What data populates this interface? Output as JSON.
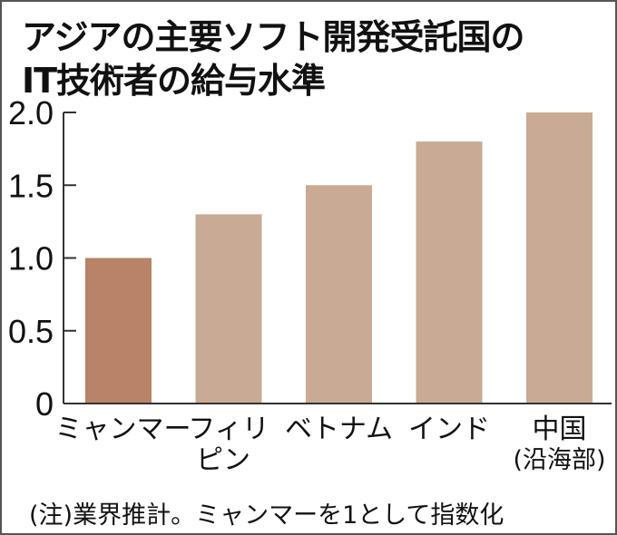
{
  "chart_data": {
    "type": "bar",
    "title": [
      "アジアの主要ソフト開発受託国の",
      "IT技術者の給与水準"
    ],
    "categories": [
      [
        "ミャンマー"
      ],
      [
        "フィリ",
        "ピン"
      ],
      [
        "ベトナム"
      ],
      [
        "インド"
      ],
      [
        "中国",
        "(沿海部)"
      ]
    ],
    "values": [
      1.0,
      1.3,
      1.5,
      1.8,
      2.0
    ],
    "ylim": [
      0,
      2.0
    ],
    "yticks": [
      "0",
      "0.5",
      "1.0",
      "1.5",
      "2.0"
    ],
    "xlabel": "",
    "ylabel": "",
    "grid": false,
    "colors": {
      "highlight": "#b88366",
      "default": "#c9aa94",
      "axis": "#333333"
    },
    "highlight_index": 0,
    "note": "(注)業界推計。ミャンマーを1として指数化"
  }
}
